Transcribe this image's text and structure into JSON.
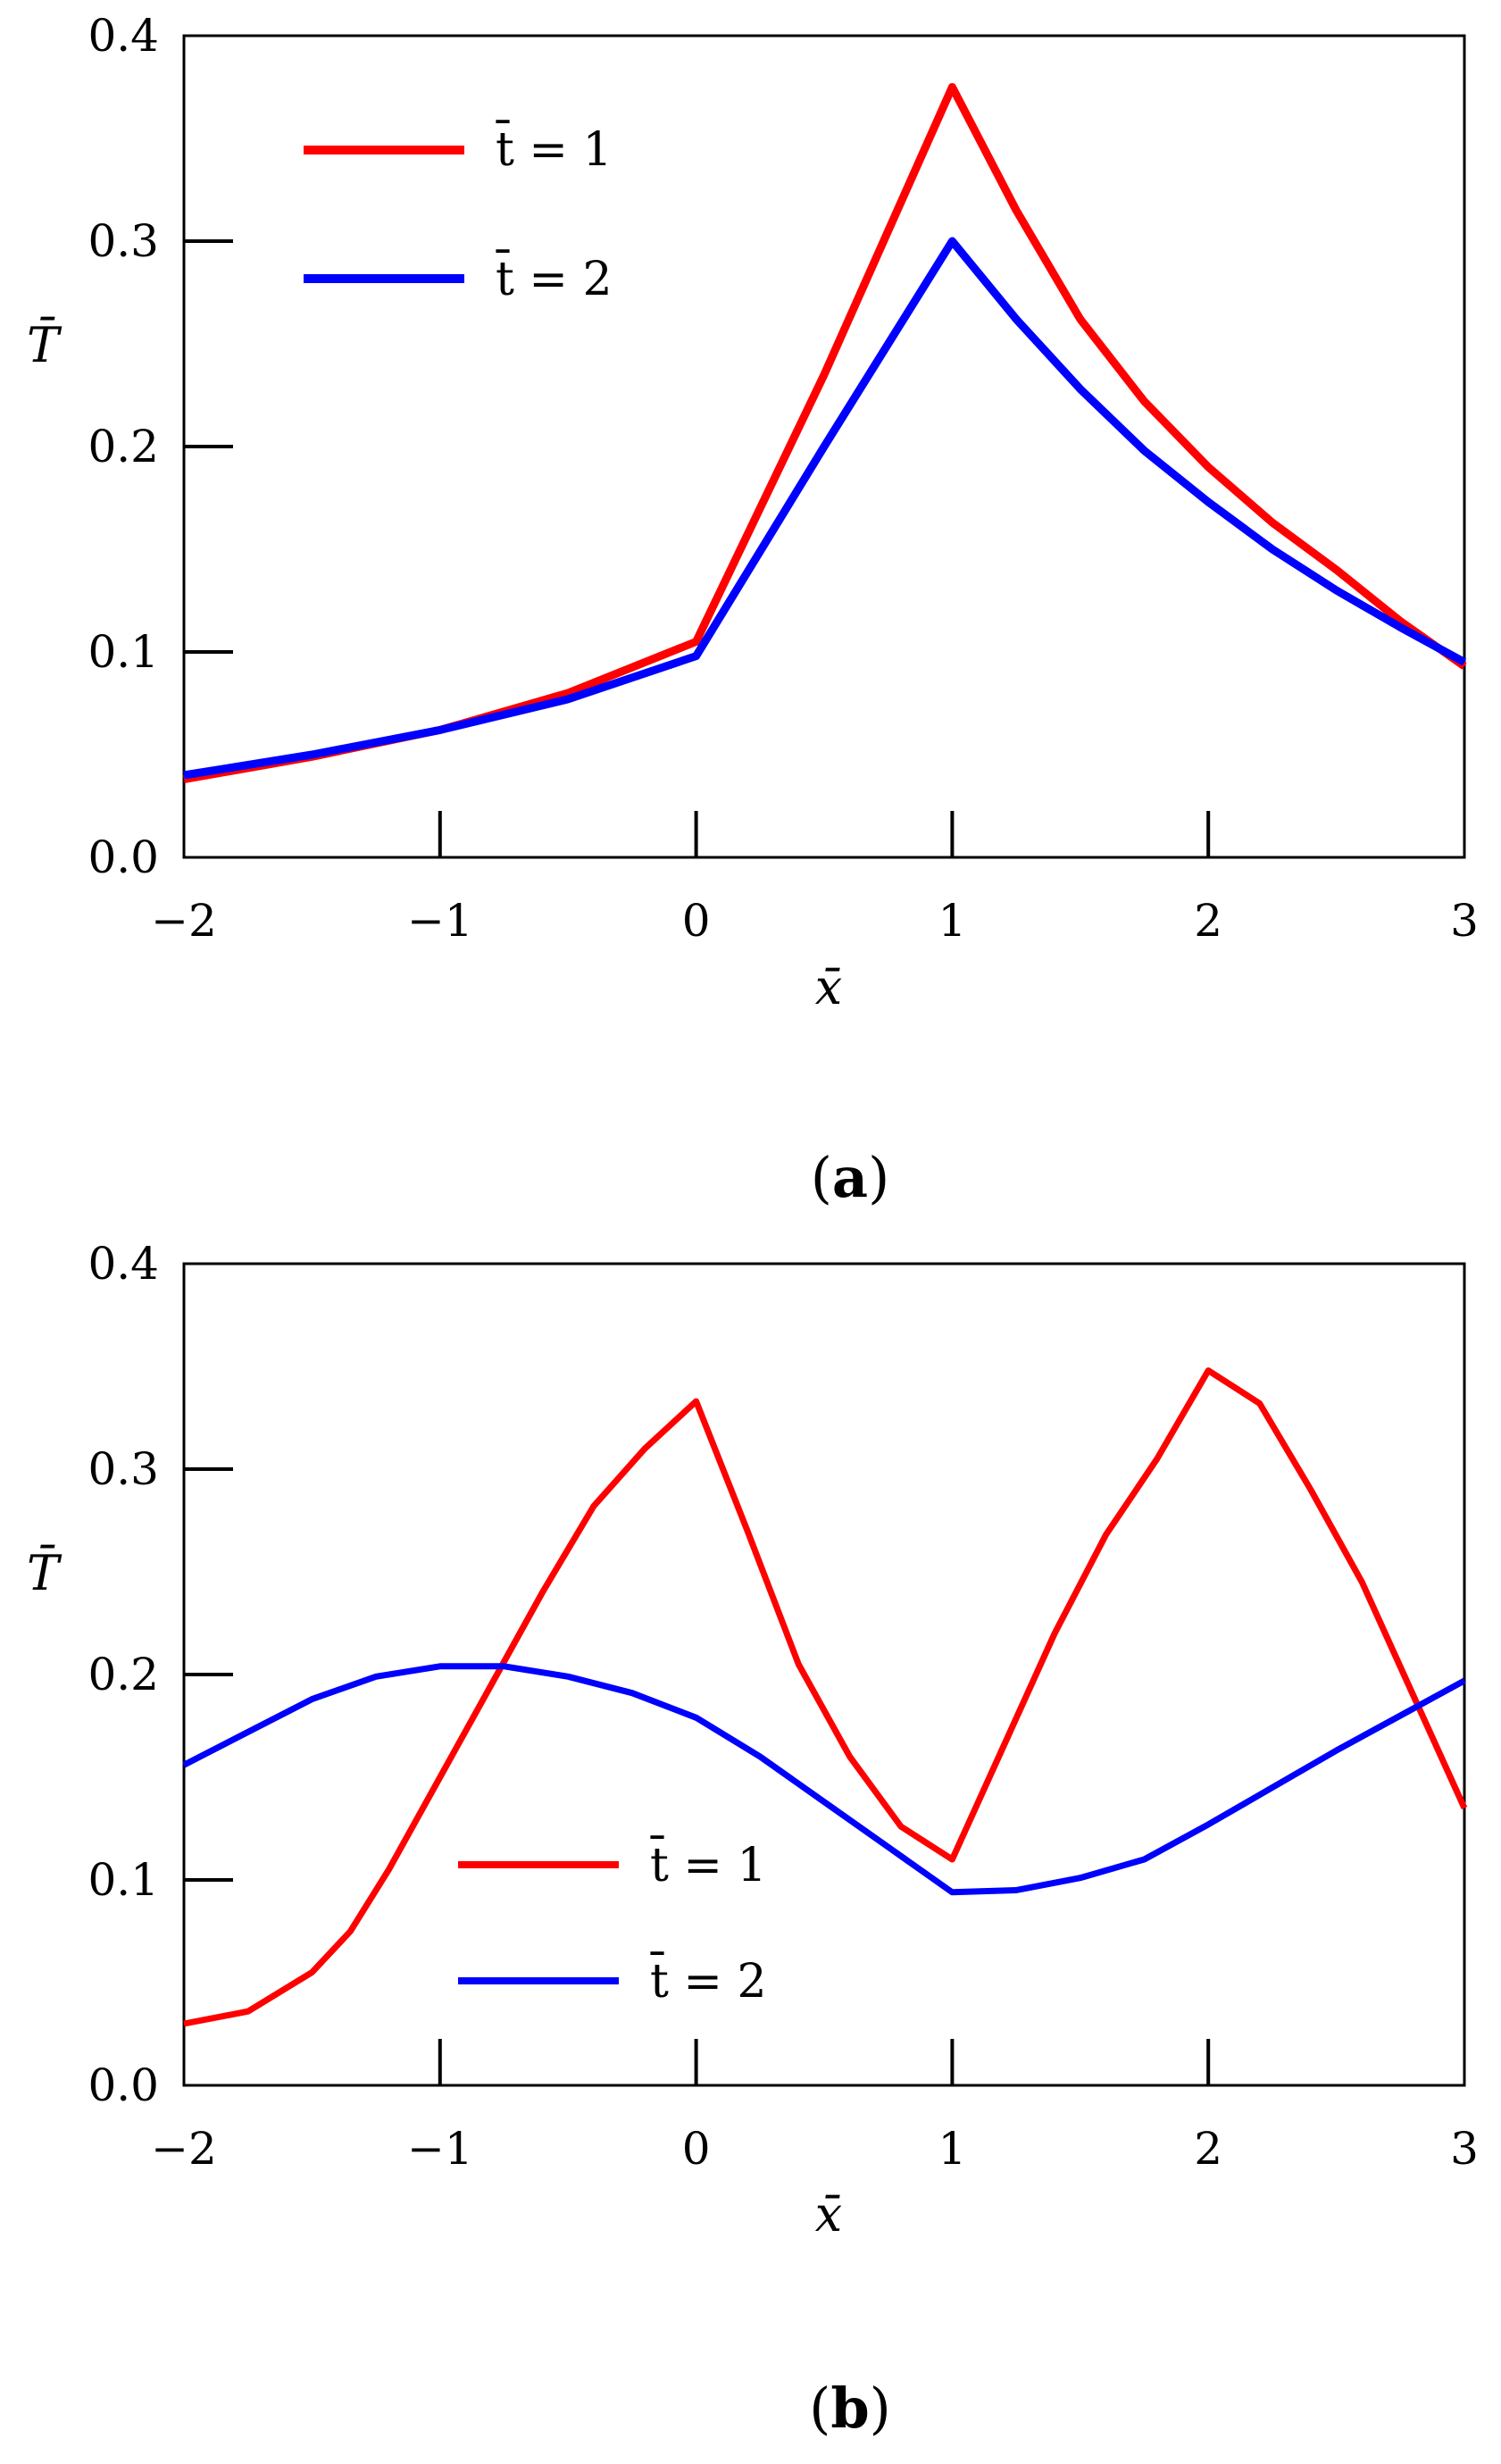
{
  "chart_data": [
    {
      "type": "line",
      "panel_label": "a",
      "xlabel": "x̄",
      "ylabel": "T̄",
      "xlim": [
        -2,
        3
      ],
      "ylim": [
        0,
        0.4
      ],
      "xticks": [
        -2,
        -1,
        0,
        1,
        2,
        3
      ],
      "xtick_labels": [
        "−2",
        "−1",
        "0",
        "1",
        "2",
        "3"
      ],
      "yticks": [
        0.0,
        0.1,
        0.2,
        0.3,
        0.4
      ],
      "ytick_labels": [
        "0.0",
        "0.1",
        "0.2",
        "0.3",
        "0.4"
      ],
      "legend_position": "top-left",
      "series": [
        {
          "name": "t̄ = 1",
          "color": "#ff0000",
          "x": [
            -2,
            -1.5,
            -1,
            -0.5,
            0,
            0.5,
            1,
            1.25,
            1.5,
            1.75,
            2,
            2.25,
            2.5,
            2.75,
            3
          ],
          "y": [
            0.038,
            0.049,
            0.062,
            0.08,
            0.105,
            0.235,
            0.375,
            0.315,
            0.262,
            0.222,
            0.19,
            0.163,
            0.14,
            0.115,
            0.093
          ]
        },
        {
          "name": "t̄ = 2",
          "color": "#0000ff",
          "x": [
            -2,
            -1.5,
            -1,
            -0.5,
            0,
            0.5,
            1,
            1.25,
            1.5,
            1.75,
            2,
            2.25,
            2.5,
            2.75,
            3
          ],
          "y": [
            0.04,
            0.05,
            0.062,
            0.077,
            0.098,
            0.2,
            0.3,
            0.262,
            0.228,
            0.198,
            0.173,
            0.15,
            0.13,
            0.112,
            0.095
          ]
        }
      ]
    },
    {
      "type": "line",
      "panel_label": "b",
      "xlabel": "x̄",
      "ylabel": "T̄",
      "xlim": [
        -2,
        3
      ],
      "ylim": [
        0,
        0.4
      ],
      "xticks": [
        -2,
        -1,
        0,
        1,
        2,
        3
      ],
      "xtick_labels": [
        "−2",
        "−1",
        "0",
        "1",
        "2",
        "3"
      ],
      "yticks": [
        0.0,
        0.1,
        0.2,
        0.3,
        0.4
      ],
      "ytick_labels": [
        "0.0",
        "0.1",
        "0.2",
        "0.3",
        "0.4"
      ],
      "legend_position": "bottom-center",
      "series": [
        {
          "name": "t̄ = 1",
          "color": "#ff0000",
          "x": [
            -2,
            -1.75,
            -1.5,
            -1.35,
            -1.2,
            -1.0,
            -0.8,
            -0.6,
            -0.4,
            -0.2,
            0,
            0.2,
            0.4,
            0.6,
            0.8,
            1.0,
            1.2,
            1.4,
            1.6,
            1.8,
            2.0,
            2.2,
            2.4,
            2.6,
            2.8,
            3.0
          ],
          "y": [
            0.03,
            0.036,
            0.055,
            0.075,
            0.105,
            0.15,
            0.195,
            0.24,
            0.282,
            0.31,
            0.333,
            0.27,
            0.205,
            0.16,
            0.126,
            0.11,
            0.165,
            0.22,
            0.268,
            0.305,
            0.348,
            0.332,
            0.29,
            0.245,
            0.19,
            0.135
          ]
        },
        {
          "name": "t̄ = 2",
          "color": "#0000ff",
          "x": [
            -2,
            -1.75,
            -1.5,
            -1.25,
            -1.0,
            -0.75,
            -0.5,
            -0.25,
            0,
            0.25,
            0.5,
            0.75,
            1.0,
            1.25,
            1.5,
            1.75,
            2.0,
            2.25,
            2.5,
            2.75,
            3.0
          ],
          "y": [
            0.156,
            0.172,
            0.188,
            0.199,
            0.204,
            0.204,
            0.199,
            0.191,
            0.179,
            0.16,
            0.138,
            0.116,
            0.094,
            0.095,
            0.101,
            0.11,
            0.127,
            0.145,
            0.163,
            0.18,
            0.197
          ]
        }
      ]
    }
  ]
}
